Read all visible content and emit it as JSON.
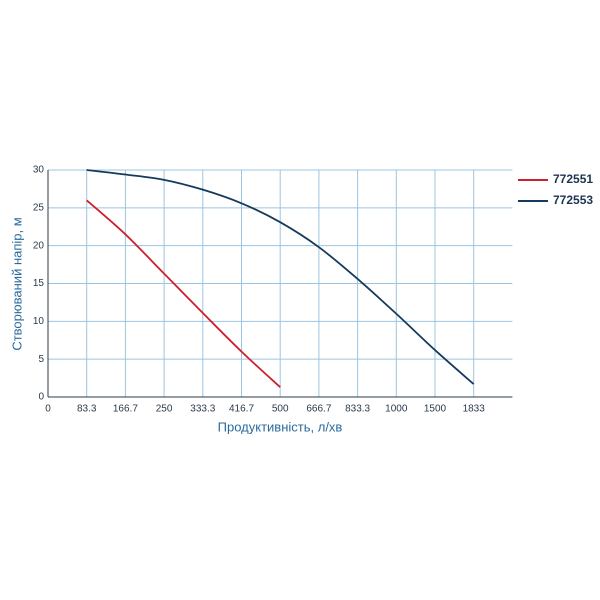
{
  "chart_data": {
    "type": "line",
    "x_label": "Продуктивність, л/хв",
    "y_label": "Створюваний напір, м",
    "categories": [
      "0",
      "83.3",
      "166.7",
      "250",
      "333.3",
      "416.7",
      "500",
      "666.7",
      "833.3",
      "1000",
      "1500",
      "1833"
    ],
    "series": [
      {
        "name": "772551",
        "color": "#cc1f2f",
        "values": [
          null,
          26,
          21.5,
          16.3,
          11.1,
          6,
          1.3,
          null,
          null,
          null,
          null,
          null
        ]
      },
      {
        "name": "772553",
        "color": "#163a5c",
        "values": [
          null,
          30,
          29.4,
          28.7,
          27.4,
          25.6,
          23.1,
          19.8,
          15.6,
          11,
          6.2,
          1.7
        ]
      }
    ],
    "ylim": [
      0,
      30
    ],
    "yticks": [
      0,
      5,
      10,
      15,
      20,
      25,
      30
    ],
    "grid": true,
    "legend": "right"
  }
}
